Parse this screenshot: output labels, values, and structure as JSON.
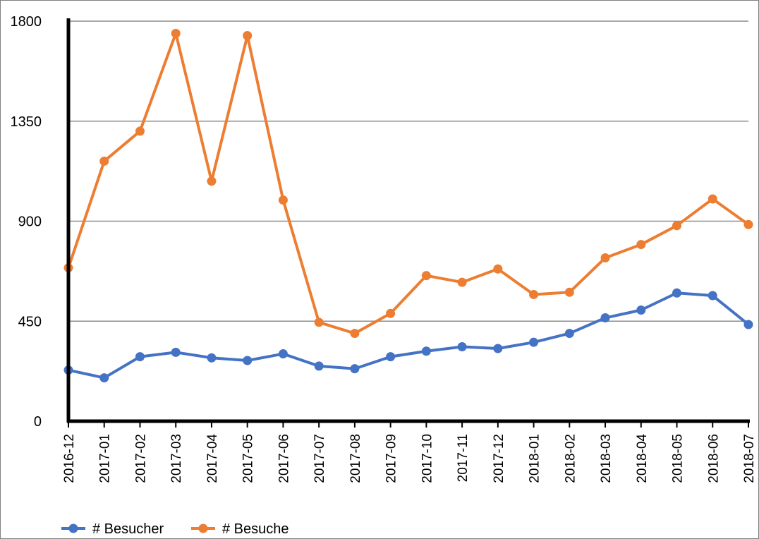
{
  "chart_data": {
    "type": "line",
    "title": "",
    "xlabel": "",
    "ylabel": "",
    "categories": [
      "2016-12",
      "2017-01",
      "2017-02",
      "2017-03",
      "2017-04",
      "2017-05",
      "2017-06",
      "2017-07",
      "2017-08",
      "2017-09",
      "2017-10",
      "2017-11",
      "2017-12",
      "2018-01",
      "2018-02",
      "2018-03",
      "2018-04",
      "2018-05",
      "2018-06",
      "2018-07"
    ],
    "y_ticks": [
      "0",
      "450",
      "900",
      "1350",
      "1800"
    ],
    "ylim": [
      0,
      1800
    ],
    "grid": "horizontal",
    "legend_position": "bottom-left",
    "series": [
      {
        "name": "# Besucher",
        "color": "#4472c4",
        "values": [
          230,
          195,
          290,
          310,
          285,
          273,
          303,
          248,
          236,
          290,
          315,
          335,
          327,
          355,
          395,
          465,
          500,
          577,
          565,
          435
        ]
      },
      {
        "name": "# Besuche",
        "color": "#ed7d31",
        "values": [
          690,
          1170,
          1305,
          1745,
          1080,
          1735,
          995,
          445,
          395,
          485,
          655,
          625,
          685,
          570,
          580,
          735,
          795,
          880,
          1000,
          885
        ]
      }
    ]
  }
}
